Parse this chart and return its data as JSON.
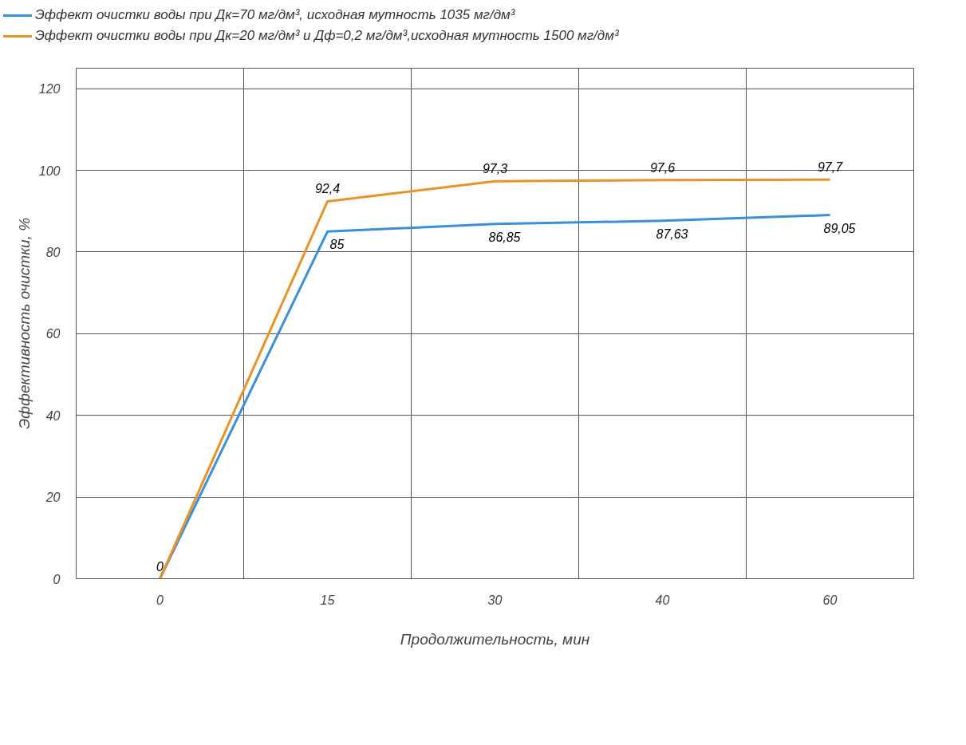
{
  "chart_data": {
    "type": "line",
    "xlabel": "Продолжительность, мин",
    "ylabel": "Эффективность очистки, %",
    "categories": [
      "0",
      "15",
      "30",
      "40",
      "60"
    ],
    "series": [
      {
        "name": "Эффект очистки воды при Дк=70 мг/дм³, исходная мутность 1035 мг/дм³",
        "color": "#3a8fd6",
        "values": [
          0,
          85,
          86.85,
          87.63,
          89.05
        ],
        "value_labels": [
          null,
          "85",
          "86,85",
          "87,63",
          "89,05"
        ]
      },
      {
        "name": "Эффект очистки воды при Дк=20 мг/дм³ и  Дф=0,2 мг/дм³,исходная мутность 1500 мг/дм³",
        "color": "#e8922a",
        "values": [
          0,
          92.4,
          97.3,
          97.6,
          97.7
        ],
        "value_labels": [
          "0",
          "92,4",
          "97,3",
          "97,6",
          "97,7"
        ]
      }
    ],
    "ylim": [
      0,
      125
    ],
    "yticks": [
      0,
      20,
      40,
      60,
      80,
      100,
      120
    ],
    "grid": true,
    "legend": "top",
    "marker": "none",
    "line_style": "solid"
  }
}
